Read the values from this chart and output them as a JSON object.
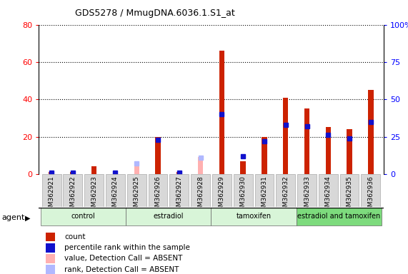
{
  "title": "GDS5278 / MmugDNA.6036.1.S1_at",
  "samples": [
    "GSM362921",
    "GSM362922",
    "GSM362923",
    "GSM362924",
    "GSM362925",
    "GSM362926",
    "GSM362927",
    "GSM362928",
    "GSM362929",
    "GSM362930",
    "GSM362931",
    "GSM362932",
    "GSM362933",
    "GSM362934",
    "GSM362935",
    "GSM362936"
  ],
  "count": [
    1,
    1,
    4,
    1,
    4,
    20,
    1,
    1,
    66,
    7,
    20,
    41,
    35,
    25,
    24,
    45
  ],
  "rank": [
    1,
    1,
    null,
    1,
    null,
    23,
    1,
    null,
    40,
    12,
    22,
    33,
    32,
    26,
    24,
    35
  ],
  "count_absent": [
    null,
    null,
    null,
    null,
    4,
    null,
    null,
    9,
    null,
    null,
    null,
    null,
    null,
    null,
    null,
    null
  ],
  "rank_absent": [
    null,
    null,
    5,
    null,
    7,
    null,
    null,
    11,
    null,
    null,
    null,
    null,
    null,
    null,
    null,
    null
  ],
  "detection_absent": [
    false,
    false,
    false,
    false,
    true,
    false,
    false,
    true,
    false,
    false,
    false,
    false,
    false,
    false,
    false,
    false
  ],
  "groups": [
    {
      "label": "control",
      "start": 0,
      "end": 3,
      "color": "#d8f5d8"
    },
    {
      "label": "estradiol",
      "start": 4,
      "end": 7,
      "color": "#d8f5d8"
    },
    {
      "label": "tamoxifen",
      "start": 8,
      "end": 11,
      "color": "#d8f5d8"
    },
    {
      "label": "estradiol and tamoxifen",
      "start": 12,
      "end": 15,
      "color": "#7ddb7d"
    }
  ],
  "ylim_left": [
    0,
    80
  ],
  "ylim_right": [
    0,
    100
  ],
  "yticks_left": [
    0,
    20,
    40,
    60,
    80
  ],
  "yticks_right": [
    0,
    25,
    50,
    75,
    100
  ],
  "ytick_labels_left": [
    "0",
    "20",
    "40",
    "60",
    "80"
  ],
  "ytick_labels_right": [
    "0",
    "25",
    "50",
    "75",
    "100%"
  ],
  "bar_color": "#cc2200",
  "rank_color": "#1111cc",
  "absent_count_color": "#ffb0b0",
  "absent_rank_color": "#b0b8ff",
  "plot_bg": "#ffffff",
  "cell_bg": "#d8d8d8",
  "agent_label": "agent",
  "legend_items": [
    {
      "label": "count",
      "color": "#cc2200"
    },
    {
      "label": "percentile rank within the sample",
      "color": "#1111cc"
    },
    {
      "label": "value, Detection Call = ABSENT",
      "color": "#ffb0b0"
    },
    {
      "label": "rank, Detection Call = ABSENT",
      "color": "#b0b8ff"
    }
  ]
}
